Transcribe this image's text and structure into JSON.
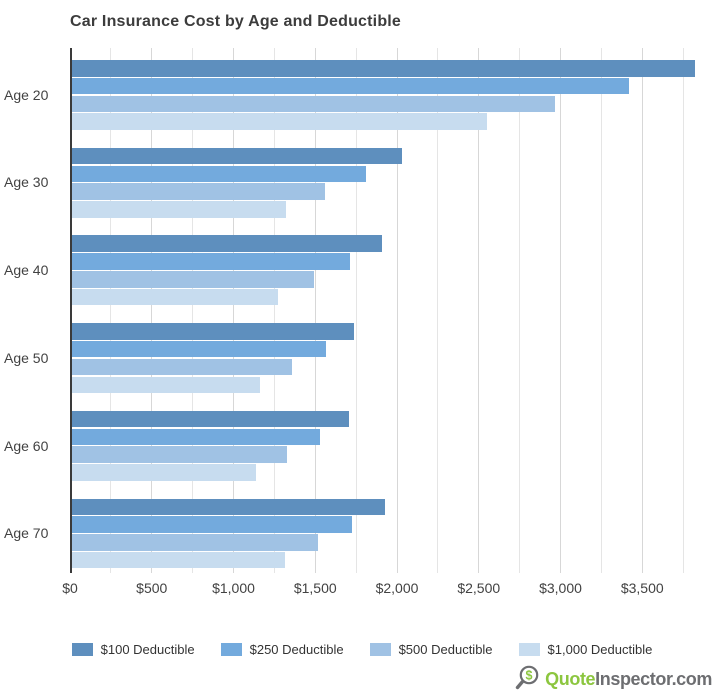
{
  "title": "Car Insurance Cost by Age and Deductible",
  "chart_data": {
    "type": "bar",
    "orientation": "horizontal",
    "title": "Car Insurance Cost by Age and Deductible",
    "xlabel": "",
    "ylabel": "",
    "xlim": [
      0,
      4000
    ],
    "grid": "vertical gridlines every $250, light gray",
    "legend_position": "bottom-center",
    "categories": [
      "Age 20",
      "Age 30",
      "Age 40",
      "Age 50",
      "Age 60",
      "Age 70"
    ],
    "x_ticks": [
      "$0",
      "$500",
      "$1,000",
      "$1,500",
      "$2,000",
      "$2,500",
      "$3,000",
      "$3,500"
    ],
    "series": [
      {
        "name": "$100 Deductible",
        "color": "#5e8fbe",
        "values": [
          3820,
          2030,
          1910,
          1740,
          1705,
          1925
        ]
      },
      {
        "name": "$250 Deductible",
        "color": "#73aadd",
        "values": [
          3420,
          1810,
          1710,
          1565,
          1530,
          1725
        ]
      },
      {
        "name": "$500 Deductible",
        "color": "#a0c2e4",
        "values": [
          2965,
          1560,
          1490,
          1360,
          1330,
          1515
        ]
      },
      {
        "name": "$1,000 Deductible",
        "color": "#c7dcef",
        "values": [
          2550,
          1320,
          1270,
          1160,
          1135,
          1315
        ]
      }
    ]
  },
  "footer": {
    "brand_green": "Quote",
    "brand_gray": "Inspector.com",
    "icon": "magnifier-dollar-icon",
    "icon_dollar": "$",
    "accent_green": "#8cc63f",
    "accent_gray": "#6d6e71"
  }
}
